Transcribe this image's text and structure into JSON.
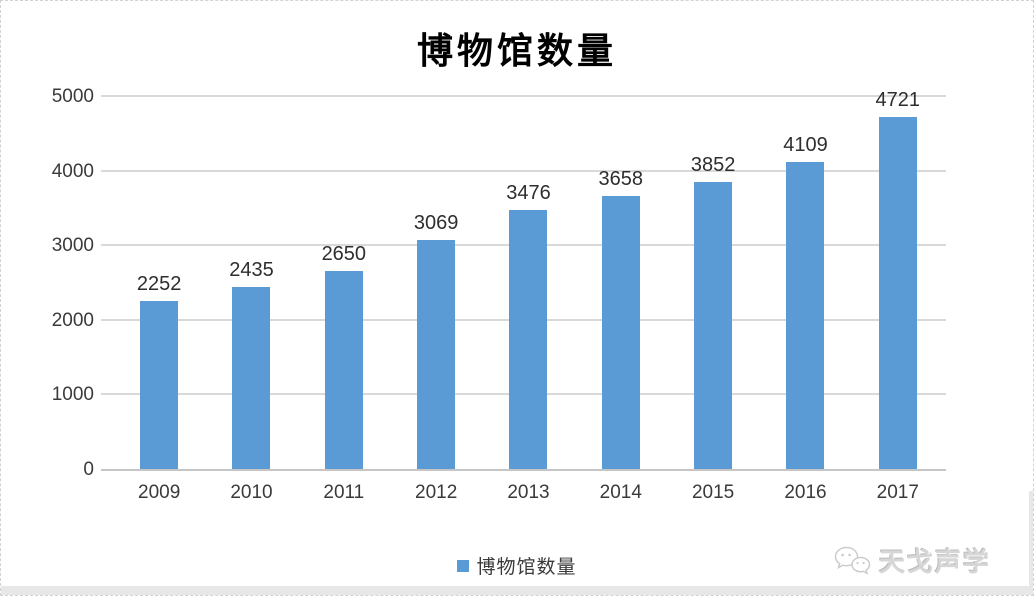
{
  "title": "博物馆数量",
  "legend": {
    "label": "博物馆数量",
    "marker_color": "#5B9BD5"
  },
  "watermark": {
    "icon": "wechat-icon",
    "text": "天戈声学"
  },
  "chart_data": {
    "type": "bar",
    "title": "博物馆数量",
    "categories": [
      "2009",
      "2010",
      "2011",
      "2012",
      "2013",
      "2014",
      "2015",
      "2016",
      "2017"
    ],
    "series": [
      {
        "name": "博物馆数量",
        "values": [
          2252,
          2435,
          2650,
          3069,
          3476,
          3658,
          3852,
          4109,
          4721
        ]
      }
    ],
    "xlabel": "",
    "ylabel": "",
    "ylim": [
      0,
      5000
    ],
    "yticks": [
      0,
      1000,
      2000,
      3000,
      4000,
      5000
    ],
    "grid": true,
    "data_labels": true,
    "legend_position": "bottom",
    "bar_color": "#5B9BD5",
    "gridline_color": "#D9D9D9",
    "axis_line_color": "#C6C6C6",
    "label_text_color": "#2E2E2E"
  }
}
